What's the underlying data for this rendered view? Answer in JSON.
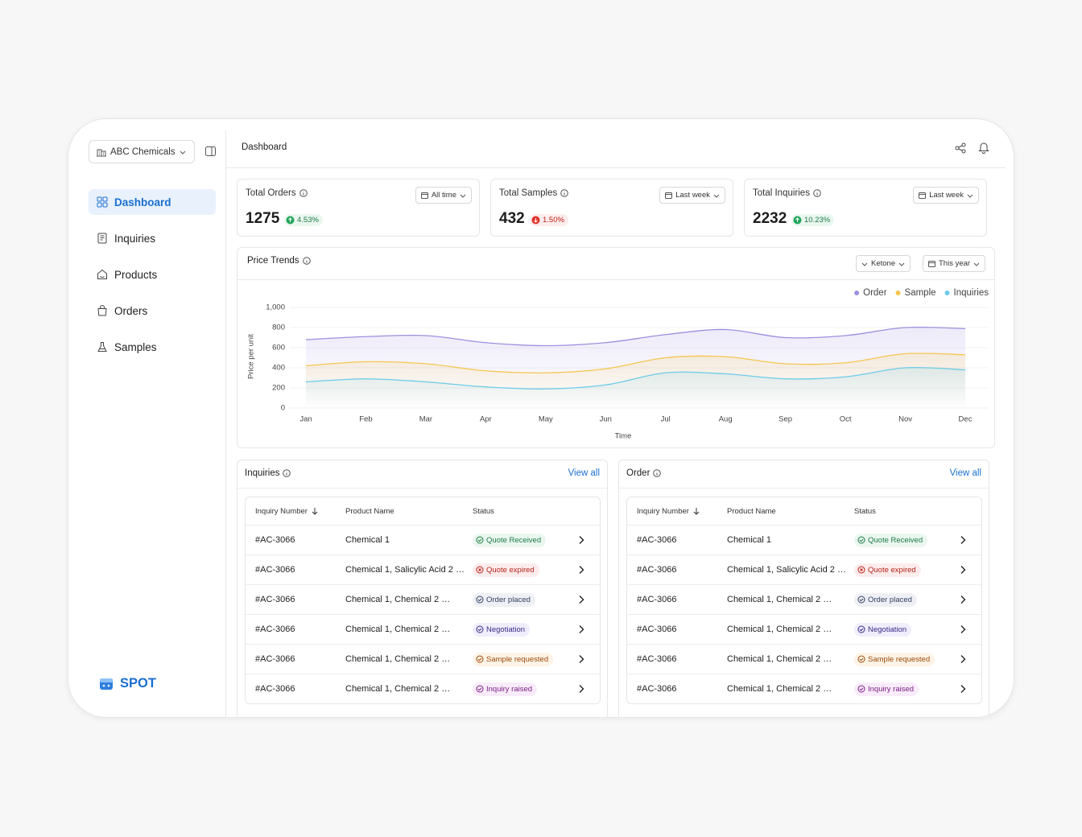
{
  "sidebar": {
    "company": "ABC Chemicals",
    "nav": [
      "Dashboard",
      "Inquiries",
      "Products",
      "Orders",
      "Samples"
    ],
    "brand": "SPOT"
  },
  "header": {
    "title": "Dashboard"
  },
  "stats": [
    {
      "label": "Total Orders",
      "filter": "All time",
      "value": 1275,
      "change": "4.53%"
    },
    {
      "label": "Total Samples",
      "filter": "Last week",
      "value": 432,
      "change": "1.50%"
    },
    {
      "label": "Total Inquiries",
      "filter": "Last week",
      "value": 2232,
      "change": "10.23%"
    }
  ],
  "chart_data": {
    "type": "line",
    "title": "Price Trends",
    "filters": [
      "Ketone",
      "This year"
    ],
    "categories": [
      "Jan",
      "Feb",
      "Mar",
      "Apr",
      "May",
      "Jun",
      "Jul",
      "Aug",
      "Sep",
      "Oct",
      "Nov",
      "Dec"
    ],
    "series": [
      {
        "name": "Order",
        "color": "#a08ee0",
        "values": [
          680,
          710,
          720,
          650,
          620,
          650,
          730,
          780,
          700,
          720,
          800,
          790
        ]
      },
      {
        "name": "Sample",
        "color": "#f5c64f",
        "values": [
          420,
          460,
          440,
          370,
          350,
          390,
          500,
          510,
          440,
          450,
          540,
          530
        ]
      },
      {
        "name": "Inquiries",
        "color": "#6ccbe8",
        "values": [
          260,
          290,
          260,
          210,
          190,
          230,
          350,
          340,
          290,
          310,
          400,
          380
        ]
      }
    ],
    "ylim": [
      0,
      1000
    ],
    "yticks": [
      0,
      200,
      400,
      600,
      800,
      {
        "value": 1000,
        "label": "1,000"
      }
    ],
    "xlabel": "Time",
    "ylabel": "Price per unit",
    "grid": true
  },
  "tables": [
    {
      "title": "Inquiries",
      "link": "View all",
      "columns": [
        "Inquiry Number",
        "Product Name",
        "Status"
      ],
      "rows": [
        [
          "#AC-3066",
          "Chemical 1",
          "Quote Received"
        ],
        [
          "#AC-3066",
          "Chemical 1, Salicylic Acid 2 …",
          "Quote expired"
        ],
        [
          "#AC-3066",
          "Chemical 1, Chemical 2 …",
          "Order placed"
        ],
        [
          "#AC-3066",
          "Chemical 1, Chemical 2 …",
          "Negotiation"
        ],
        [
          "#AC-3066",
          "Chemical 1, Chemical 2 …",
          "Sample requested"
        ],
        [
          "#AC-3066",
          "Chemical 1, Chemical 2 …",
          "Inquiry raised"
        ]
      ]
    },
    {
      "title": "Order",
      "link": "View all",
      "columns": [
        "Inquiry Number",
        "Product Name",
        "Status"
      ],
      "rows": [
        [
          "#AC-3066",
          "Chemical 1",
          "Quote Received"
        ],
        [
          "#AC-3066",
          "Chemical 1, Salicylic Acid 2 …",
          "Quote expired"
        ],
        [
          "#AC-3066",
          "Chemical 1, Chemical 2 …",
          "Order placed"
        ],
        [
          "#AC-3066",
          "Chemical 1, Chemical 2 …",
          "Negotiation"
        ],
        [
          "#AC-3066",
          "Chemical 1, Chemical 2 …",
          "Sample requested"
        ],
        [
          "#AC-3066",
          "Chemical 1, Chemical 2 …",
          "Inquiry raised"
        ]
      ]
    }
  ]
}
